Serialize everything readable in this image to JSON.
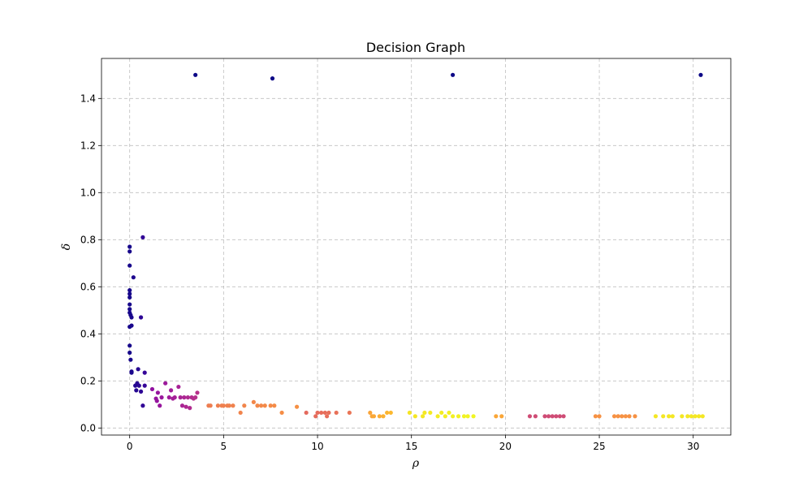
{
  "chart_data": {
    "type": "scatter",
    "title": "Decision Graph",
    "xlabel": "ρ",
    "ylabel": "δ",
    "xlim": [
      -1.5,
      32
    ],
    "ylim": [
      -0.03,
      1.57
    ],
    "xticks": [
      0,
      5,
      10,
      15,
      20,
      25,
      30
    ],
    "yticks": [
      0.0,
      0.2,
      0.4,
      0.6,
      0.8,
      1.0,
      1.2,
      1.4
    ],
    "grid": true,
    "colormap": "plasma",
    "color_encodes": "rho",
    "points": [
      [
        3.5,
        1.5
      ],
      [
        7.6,
        1.485
      ],
      [
        17.2,
        1.5
      ],
      [
        30.4,
        1.5
      ],
      [
        0.0,
        0.77
      ],
      [
        0.0,
        0.75
      ],
      [
        0.0,
        0.69
      ],
      [
        0.0,
        0.585
      ],
      [
        0.0,
        0.57
      ],
      [
        0.0,
        0.555
      ],
      [
        0.0,
        0.525
      ],
      [
        0.0,
        0.505
      ],
      [
        0.0,
        0.49
      ],
      [
        0.05,
        0.48
      ],
      [
        0.1,
        0.47
      ],
      [
        0.1,
        0.435
      ],
      [
        0.0,
        0.43
      ],
      [
        0.0,
        0.35
      ],
      [
        0.0,
        0.32
      ],
      [
        0.05,
        0.29
      ],
      [
        0.1,
        0.24
      ],
      [
        0.1,
        0.235
      ],
      [
        0.2,
        0.64
      ],
      [
        0.6,
        0.47
      ],
      [
        0.7,
        0.81
      ],
      [
        0.8,
        0.235
      ],
      [
        0.3,
        0.18
      ],
      [
        0.4,
        0.19
      ],
      [
        0.35,
        0.16
      ],
      [
        0.45,
        0.25
      ],
      [
        0.5,
        0.18
      ],
      [
        0.6,
        0.155
      ],
      [
        0.7,
        0.095
      ],
      [
        0.8,
        0.18
      ],
      [
        1.2,
        0.165
      ],
      [
        1.4,
        0.125
      ],
      [
        1.45,
        0.115
      ],
      [
        1.5,
        0.15
      ],
      [
        1.6,
        0.095
      ],
      [
        1.7,
        0.13
      ],
      [
        1.9,
        0.19
      ],
      [
        2.1,
        0.13
      ],
      [
        2.2,
        0.16
      ],
      [
        2.3,
        0.125
      ],
      [
        2.4,
        0.13
      ],
      [
        2.6,
        0.175
      ],
      [
        2.7,
        0.13
      ],
      [
        2.8,
        0.095
      ],
      [
        2.9,
        0.13
      ],
      [
        3.0,
        0.09
      ],
      [
        3.1,
        0.13
      ],
      [
        3.2,
        0.085
      ],
      [
        3.3,
        0.13
      ],
      [
        3.4,
        0.125
      ],
      [
        3.5,
        0.13
      ],
      [
        3.6,
        0.15
      ],
      [
        4.2,
        0.095
      ],
      [
        4.3,
        0.095
      ],
      [
        4.7,
        0.095
      ],
      [
        4.9,
        0.095
      ],
      [
        5.0,
        0.095
      ],
      [
        5.2,
        0.095
      ],
      [
        5.3,
        0.095
      ],
      [
        5.5,
        0.095
      ],
      [
        5.9,
        0.065
      ],
      [
        6.1,
        0.095
      ],
      [
        6.6,
        0.11
      ],
      [
        6.8,
        0.095
      ],
      [
        7.0,
        0.095
      ],
      [
        7.2,
        0.095
      ],
      [
        7.5,
        0.095
      ],
      [
        7.7,
        0.095
      ],
      [
        8.1,
        0.065
      ],
      [
        8.9,
        0.09
      ],
      [
        9.4,
        0.065
      ],
      [
        9.9,
        0.05
      ],
      [
        10.0,
        0.065
      ],
      [
        10.2,
        0.065
      ],
      [
        10.4,
        0.065
      ],
      [
        10.5,
        0.05
      ],
      [
        10.6,
        0.065
      ],
      [
        11.0,
        0.065
      ],
      [
        11.7,
        0.065
      ],
      [
        12.8,
        0.065
      ],
      [
        12.9,
        0.05
      ],
      [
        13.0,
        0.05
      ],
      [
        13.3,
        0.05
      ],
      [
        13.5,
        0.05
      ],
      [
        13.7,
        0.065
      ],
      [
        13.9,
        0.065
      ],
      [
        14.9,
        0.065
      ],
      [
        15.2,
        0.05
      ],
      [
        15.6,
        0.05
      ],
      [
        15.7,
        0.065
      ],
      [
        16.0,
        0.065
      ],
      [
        16.4,
        0.05
      ],
      [
        16.6,
        0.065
      ],
      [
        16.8,
        0.05
      ],
      [
        17.0,
        0.065
      ],
      [
        17.2,
        0.05
      ],
      [
        17.5,
        0.05
      ],
      [
        17.8,
        0.05
      ],
      [
        18.0,
        0.05
      ],
      [
        18.3,
        0.05
      ],
      [
        19.5,
        0.05
      ],
      [
        19.8,
        0.05
      ],
      [
        21.3,
        0.05
      ],
      [
        21.6,
        0.05
      ],
      [
        22.1,
        0.05
      ],
      [
        22.3,
        0.05
      ],
      [
        22.5,
        0.05
      ],
      [
        22.7,
        0.05
      ],
      [
        22.9,
        0.05
      ],
      [
        23.1,
        0.05
      ],
      [
        24.8,
        0.05
      ],
      [
        25.0,
        0.05
      ],
      [
        25.8,
        0.05
      ],
      [
        26.0,
        0.05
      ],
      [
        26.2,
        0.05
      ],
      [
        26.4,
        0.05
      ],
      [
        26.6,
        0.05
      ],
      [
        26.9,
        0.05
      ],
      [
        28.0,
        0.05
      ],
      [
        28.4,
        0.05
      ],
      [
        28.7,
        0.05
      ],
      [
        28.9,
        0.05
      ],
      [
        29.4,
        0.05
      ],
      [
        29.7,
        0.05
      ],
      [
        29.9,
        0.05
      ],
      [
        30.1,
        0.05
      ],
      [
        30.3,
        0.05
      ],
      [
        30.5,
        0.05
      ]
    ]
  }
}
